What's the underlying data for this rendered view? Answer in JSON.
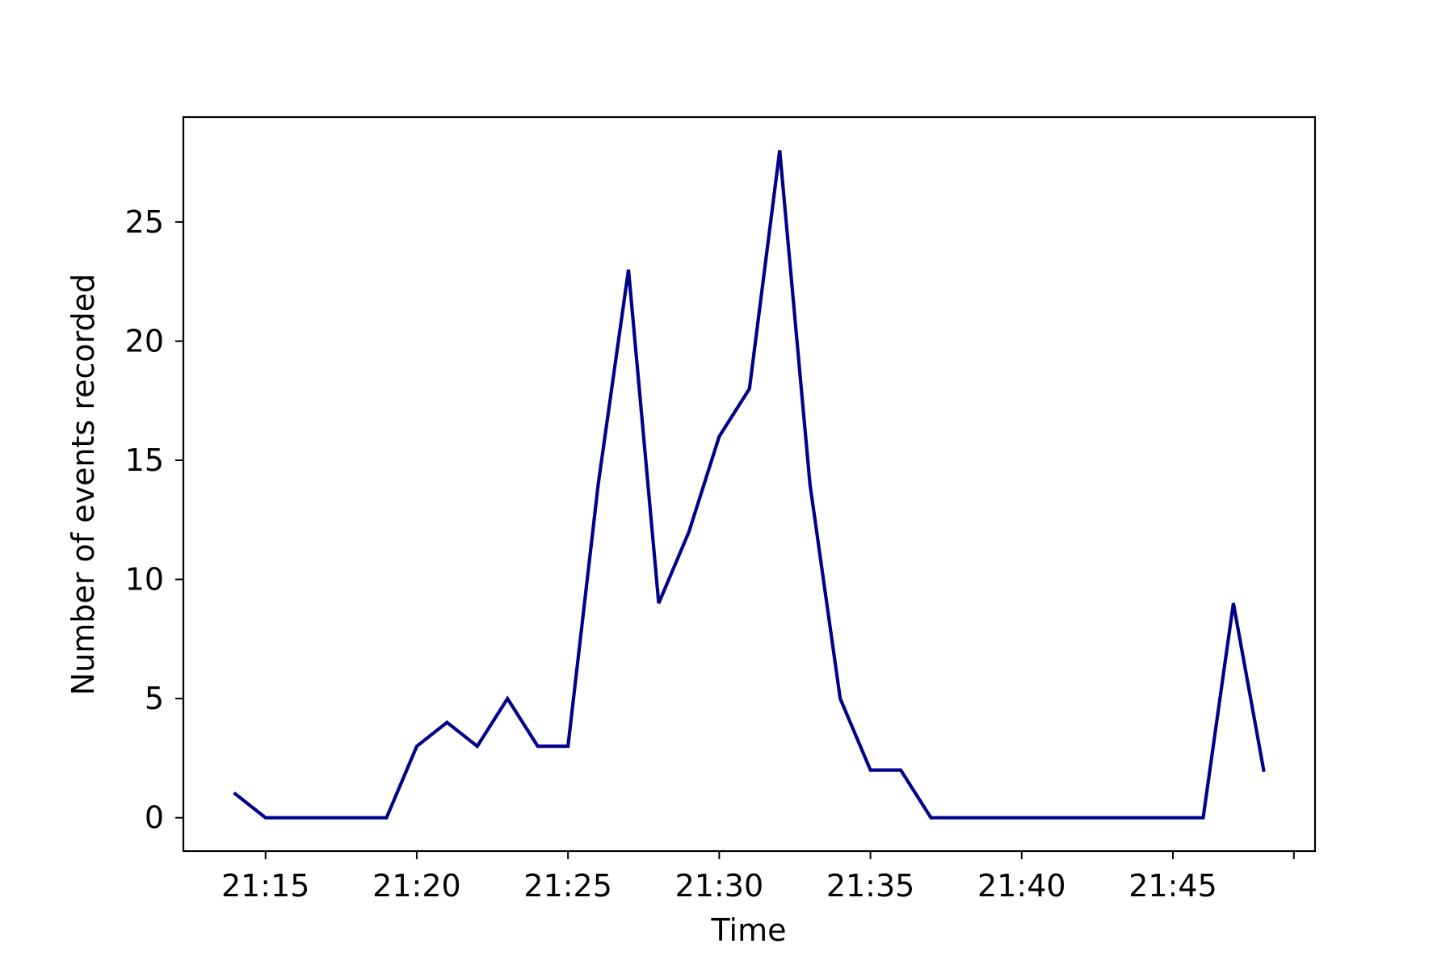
{
  "chart_data": {
    "type": "line",
    "title": "",
    "xlabel": "Time",
    "ylabel": "Number of events recorded",
    "x_tick_labels": [
      "21:15",
      "21:20",
      "21:25",
      "21:30",
      "21:35",
      "21:40",
      "21:45",
      ""
    ],
    "x_ticks": [
      "21:15",
      "21:20",
      "21:25",
      "21:30",
      "21:35",
      "21:40",
      "21:45",
      "21:49"
    ],
    "y_ticks": [
      0,
      5,
      10,
      15,
      20,
      25
    ],
    "xlim": [
      "21:12:17",
      "21:49:42"
    ],
    "ylim": [
      -1.4,
      29.4
    ],
    "grid": false,
    "series": [
      {
        "color": "#00008b",
        "x": [
          "21:14",
          "21:15",
          "21:16",
          "21:17",
          "21:18",
          "21:19",
          "21:20",
          "21:21",
          "21:22",
          "21:23",
          "21:24",
          "21:25",
          "21:26",
          "21:27",
          "21:28",
          "21:29",
          "21:30",
          "21:31",
          "21:32",
          "21:33",
          "21:34",
          "21:35",
          "21:36",
          "21:37",
          "21:38",
          "21:39",
          "21:40",
          "21:41",
          "21:42",
          "21:43",
          "21:44",
          "21:45",
          "21:46",
          "21:47",
          "21:48"
        ],
        "values": [
          1,
          0,
          0,
          0,
          0,
          0,
          3,
          4,
          3,
          5,
          3,
          3,
          14,
          23,
          9,
          12,
          16,
          18,
          28,
          14,
          5,
          2,
          2,
          0,
          0,
          0,
          0,
          0,
          0,
          0,
          0,
          0,
          0,
          9,
          2
        ]
      }
    ]
  }
}
